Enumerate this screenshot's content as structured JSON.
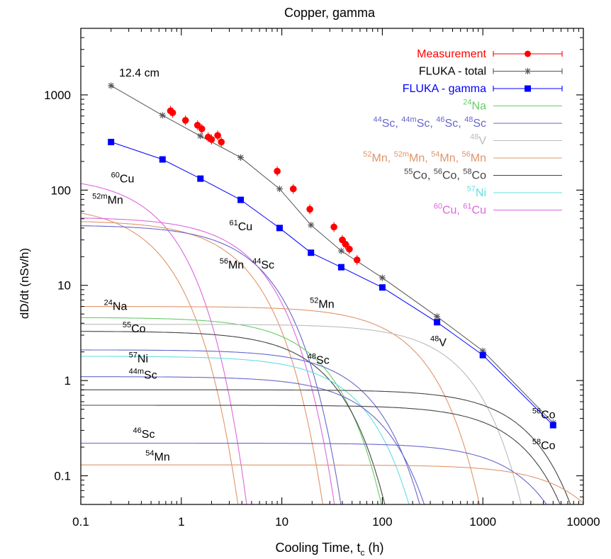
{
  "chart_data": {
    "type": "line",
    "title": "Copper, gamma",
    "subtitle": "12.4 cm",
    "xlabel": "Cooling Time, t",
    "xlabel_sub": "c",
    "xlabel_unit": " (h)",
    "ylabel": "dD/dt  (nSv/h)",
    "xscale": "log",
    "yscale": "log",
    "xlim": [
      0.1,
      10000
    ],
    "ylim": [
      0.05,
      5000
    ],
    "grid": false,
    "legend_position": "top-right",
    "x_ticks": [
      {
        "v": 0.1,
        "label": "0.1"
      },
      {
        "v": 1,
        "label": "1"
      },
      {
        "v": 10,
        "label": "10"
      },
      {
        "v": 100,
        "label": "100"
      },
      {
        "v": 1000,
        "label": "1000"
      },
      {
        "v": 10000,
        "label": "10000"
      }
    ],
    "y_ticks": [
      {
        "v": 0.1,
        "label": "0.1"
      },
      {
        "v": 1,
        "label": "1"
      },
      {
        "v": 10,
        "label": "10"
      },
      {
        "v": 100,
        "label": "100"
      },
      {
        "v": 1000,
        "label": "1000"
      }
    ],
    "colors": {
      "measurement": "#ff0000",
      "total": "#555555",
      "gamma": "#0000ff",
      "Na": "#66cc66",
      "Sc": "#6666cc",
      "V": "#bbbbbb",
      "Mn": "#e0956a",
      "Co": "#444444",
      "Ni": "#66dddd",
      "Cu": "#dd66dd"
    },
    "legend": [
      {
        "key": "measurement",
        "style": "errpoint",
        "color_key": "measurement",
        "parts": [
          {
            "t": "Measurement"
          }
        ]
      },
      {
        "key": "total",
        "style": "star",
        "color_key": "total",
        "parts": [
          {
            "t": "FLUKA - total",
            "c": "#000000"
          }
        ]
      },
      {
        "key": "gamma",
        "style": "square",
        "color_key": "gamma",
        "parts": [
          {
            "t": "FLUKA - gamma"
          }
        ]
      },
      {
        "key": "Na",
        "style": "line",
        "color_key": "Na",
        "parts": [
          {
            "s": "24"
          },
          {
            "t": "Na"
          }
        ]
      },
      {
        "key": "Sc",
        "style": "line",
        "color_key": "Sc",
        "parts": [
          {
            "s": "44"
          },
          {
            "t": "Sc, "
          },
          {
            "s": "44m"
          },
          {
            "t": "Sc, "
          },
          {
            "s": "46"
          },
          {
            "t": "Sc, "
          },
          {
            "s": "48"
          },
          {
            "t": "Sc"
          }
        ]
      },
      {
        "key": "V",
        "style": "line",
        "color_key": "V",
        "parts": [
          {
            "s": "48"
          },
          {
            "t": "V"
          }
        ]
      },
      {
        "key": "Mn",
        "style": "line",
        "color_key": "Mn",
        "parts": [
          {
            "s": "52"
          },
          {
            "t": "Mn, "
          },
          {
            "s": "52m"
          },
          {
            "t": "Mn, "
          },
          {
            "s": "54"
          },
          {
            "t": "Mn, "
          },
          {
            "s": "56"
          },
          {
            "t": "Mn"
          }
        ]
      },
      {
        "key": "Co",
        "style": "line",
        "color_key": "Co",
        "parts": [
          {
            "s": "55"
          },
          {
            "t": "Co, "
          },
          {
            "s": "56"
          },
          {
            "t": "Co, "
          },
          {
            "s": "58"
          },
          {
            "t": "Co"
          }
        ]
      },
      {
        "key": "Ni",
        "style": "line",
        "color_key": "Ni",
        "parts": [
          {
            "s": "57"
          },
          {
            "t": "Ni"
          }
        ]
      },
      {
        "key": "Cu",
        "style": "line",
        "color_key": "Cu",
        "parts": [
          {
            "s": "60"
          },
          {
            "t": "Cu, "
          },
          {
            "s": "61"
          },
          {
            "t": "Cu"
          }
        ]
      }
    ],
    "measurement": [
      {
        "x": 0.78,
        "y": 680
      },
      {
        "x": 0.82,
        "y": 650
      },
      {
        "x": 1.1,
        "y": 540
      },
      {
        "x": 1.45,
        "y": 480
      },
      {
        "x": 1.6,
        "y": 440
      },
      {
        "x": 1.85,
        "y": 360
      },
      {
        "x": 2.0,
        "y": 340
      },
      {
        "x": 2.3,
        "y": 375
      },
      {
        "x": 2.5,
        "y": 320
      },
      {
        "x": 9.0,
        "y": 158
      },
      {
        "x": 13,
        "y": 103
      },
      {
        "x": 19,
        "y": 63
      },
      {
        "x": 33,
        "y": 41
      },
      {
        "x": 40,
        "y": 30
      },
      {
        "x": 43,
        "y": 27
      },
      {
        "x": 47,
        "y": 24
      },
      {
        "x": 56,
        "y": 18.5
      }
    ],
    "fluka_total": [
      {
        "x": 0.2,
        "y": 1250
      },
      {
        "x": 0.65,
        "y": 610
      },
      {
        "x": 1.55,
        "y": 370
      },
      {
        "x": 3.9,
        "y": 220
      },
      {
        "x": 9.5,
        "y": 103
      },
      {
        "x": 19.5,
        "y": 43
      },
      {
        "x": 39,
        "y": 23
      },
      {
        "x": 100,
        "y": 12
      },
      {
        "x": 350,
        "y": 4.7
      },
      {
        "x": 1000,
        "y": 2.05
      },
      {
        "x": 5000,
        "y": 0.36
      }
    ],
    "fluka_gamma": [
      {
        "x": 0.2,
        "y": 320
      },
      {
        "x": 0.65,
        "y": 210
      },
      {
        "x": 1.55,
        "y": 132
      },
      {
        "x": 3.9,
        "y": 79
      },
      {
        "x": 9.5,
        "y": 40
      },
      {
        "x": 19.5,
        "y": 22
      },
      {
        "x": 39,
        "y": 15.5
      },
      {
        "x": 100,
        "y": 9.5
      },
      {
        "x": 350,
        "y": 4.1
      },
      {
        "x": 1000,
        "y": 1.85
      },
      {
        "x": 5000,
        "y": 0.34
      }
    ],
    "nuclides": [
      {
        "name": "60Cu",
        "mass": "60",
        "el": "Cu",
        "color_key": "Cu",
        "A": 140,
        "half_life_h": 0.39,
        "label_at": [
          0.2,
          120
        ]
      },
      {
        "name": "52mMn",
        "mass": "52m",
        "el": "Mn",
        "color_key": "Mn",
        "A": 70,
        "half_life_h": 0.35,
        "label_at": [
          0.13,
          72
        ]
      },
      {
        "name": "61Cu",
        "mass": "61",
        "el": "Cu",
        "color_key": "Cu",
        "A": 52,
        "half_life_h": 3.33,
        "label_at": [
          3.0,
          38
        ]
      },
      {
        "name": "56Mn",
        "mass": "56",
        "el": "Mn",
        "color_key": "Mn",
        "A": 48,
        "half_life_h": 2.58,
        "label_at": [
          2.4,
          15
        ]
      },
      {
        "name": "44Sc",
        "mass": "44",
        "el": "Sc",
        "color_key": "Sc",
        "A": 43,
        "half_life_h": 3.97,
        "label_at": [
          5.1,
          15
        ]
      },
      {
        "name": "24Na",
        "mass": "24",
        "el": "Na",
        "color_key": "Na",
        "A": 4.6,
        "half_life_h": 15.0,
        "label_at": [
          0.17,
          5.5
        ]
      },
      {
        "name": "55Co",
        "mass": "55",
        "el": "Co",
        "color_key": "Co",
        "A": 3.3,
        "half_life_h": 17.5,
        "label_at": [
          0.26,
          3.2
        ]
      },
      {
        "name": "57Ni",
        "mass": "57",
        "el": "Ni",
        "color_key": "Ni",
        "A": 1.8,
        "half_life_h": 35.6,
        "label_at": [
          0.3,
          1.55
        ]
      },
      {
        "name": "44mSc",
        "mass": "44m",
        "el": "Sc",
        "color_key": "Sc",
        "A": 1.1,
        "half_life_h": 58.6,
        "label_at": [
          0.3,
          1.05
        ]
      },
      {
        "name": "48Sc",
        "mass": "48",
        "el": "Sc",
        "color_key": "Sc",
        "A": 2.1,
        "half_life_h": 43.7,
        "label_at": [
          18,
          1.5
        ]
      },
      {
        "name": "52Mn",
        "mass": "52",
        "el": "Mn",
        "color_key": "Mn",
        "A": 6.0,
        "half_life_h": 134,
        "label_at": [
          19,
          5.8
        ]
      },
      {
        "name": "48V",
        "mass": "48",
        "el": "V",
        "color_key": "V",
        "A": 3.9,
        "half_life_h": 383,
        "label_at": [
          300,
          2.3
        ]
      },
      {
        "name": "56Co",
        "mass": "56",
        "el": "Co",
        "color_key": "Co",
        "A": 0.8,
        "half_life_h": 1860,
        "label_at": [
          3100,
          0.4
        ]
      },
      {
        "name": "58Co",
        "mass": "58",
        "el": "Co",
        "color_key": "Co",
        "A": 0.55,
        "half_life_h": 1700,
        "label_at": [
          3100,
          0.19
        ]
      },
      {
        "name": "46Sc",
        "mass": "46",
        "el": "Sc",
        "color_key": "Sc",
        "A": 0.22,
        "half_life_h": 2010,
        "label_at": [
          0.33,
          0.25
        ]
      },
      {
        "name": "54Mn",
        "mass": "54",
        "el": "Mn",
        "color_key": "Mn",
        "A": 0.13,
        "half_life_h": 7490,
        "label_at": [
          0.44,
          0.145
        ]
      }
    ]
  }
}
